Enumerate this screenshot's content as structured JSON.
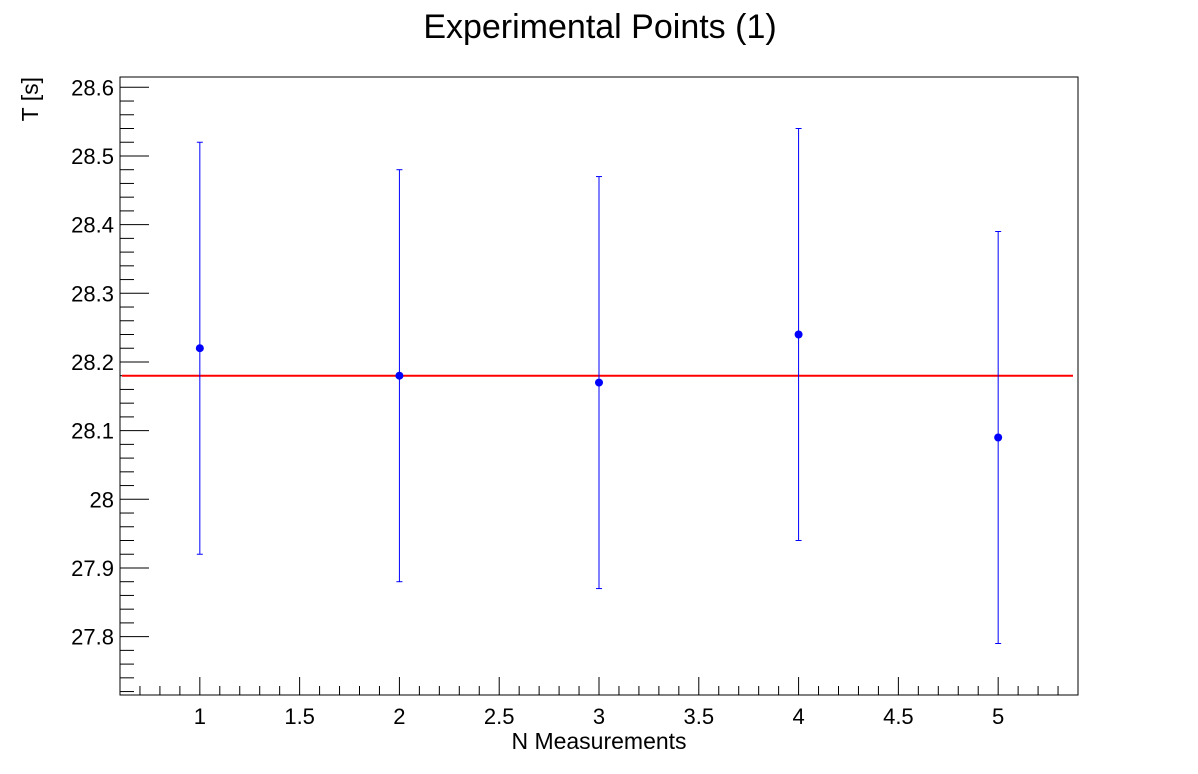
{
  "chart_data": {
    "type": "scatter",
    "title": "Experimental Points (1)",
    "xlabel": "N Measurements",
    "ylabel": "T [s]",
    "xlim": [
      0.6,
      5.4
    ],
    "ylim": [
      27.715,
      28.615
    ],
    "x_ticks": [
      1,
      1.5,
      2,
      2.5,
      3,
      3.5,
      4,
      4.5,
      5
    ],
    "x_tick_labels": [
      "1",
      "1.5",
      "2",
      "2.5",
      "3",
      "3.5",
      "4",
      "4.5",
      "5"
    ],
    "y_ticks": [
      27.8,
      27.9,
      28.0,
      28.1,
      28.2,
      28.3,
      28.4,
      28.5,
      28.6
    ],
    "y_tick_labels": [
      "27.8",
      "27.9",
      "28",
      "28.1",
      "28.2",
      "28.3",
      "28.4",
      "28.5",
      "28.6"
    ],
    "grid": false,
    "series": [
      {
        "x": [
          1,
          2,
          3,
          4,
          5
        ],
        "y": [
          28.22,
          28.18,
          28.17,
          28.24,
          28.09
        ],
        "y_err": [
          0.3,
          0.3,
          0.3,
          0.3,
          0.3
        ],
        "color": "#0000ff"
      }
    ],
    "reference_line": {
      "y": 28.18,
      "color": "#ff0000"
    },
    "frame_color": "#000000"
  }
}
